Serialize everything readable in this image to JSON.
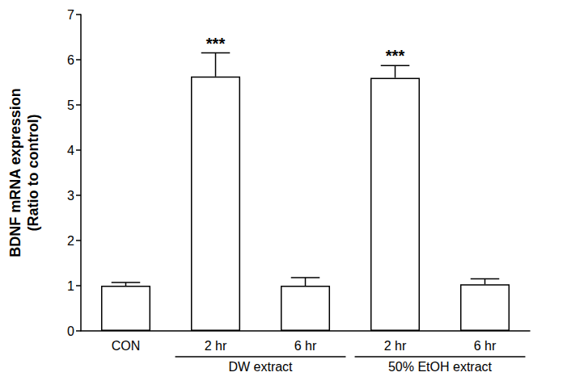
{
  "chart_data": {
    "type": "bar",
    "ylabel": "BDNF mRNA expression\n(Ratio to control)",
    "categories": [
      "CON",
      "2 hr",
      "6 hr",
      "2 hr",
      "6 hr"
    ],
    "values": [
      1.0,
      5.63,
      1.0,
      5.6,
      1.03
    ],
    "errors": [
      0.07,
      0.52,
      0.18,
      0.27,
      0.12
    ],
    "annotations": [
      null,
      "***",
      null,
      "***",
      null
    ],
    "groups": [
      {
        "label": "DW extract",
        "start": 1,
        "end": 2
      },
      {
        "label": "50% EtOH extract",
        "start": 3,
        "end": 4
      }
    ],
    "color": "#ffffff",
    "ylim": [
      0,
      7
    ],
    "yticks": [
      0,
      1,
      2,
      3,
      4,
      5,
      6,
      7
    ],
    "grid": false
  }
}
